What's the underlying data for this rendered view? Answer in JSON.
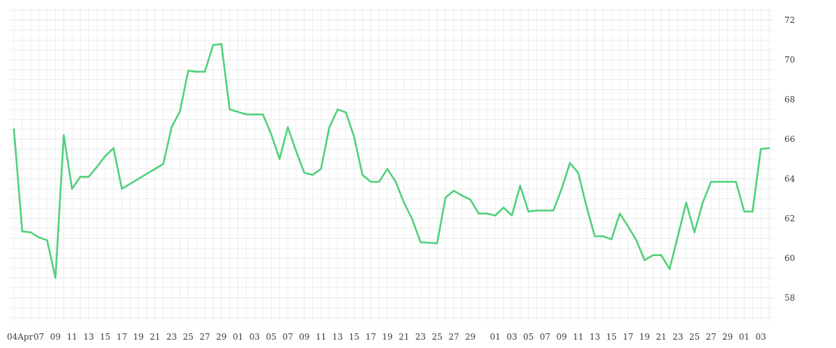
{
  "chart_data": {
    "type": "line",
    "title": "",
    "xlabel": "",
    "ylabel": "",
    "ylim": [
      56.8,
      72.6
    ],
    "xlim": [
      "2024-04-04",
      "2024-07-04"
    ],
    "y_axis_position": "right",
    "grid": true,
    "legend": "none",
    "yticks": [
      58,
      60,
      62,
      64,
      66,
      68,
      70,
      72
    ],
    "xtick_labels": [
      "04Apr",
      "07",
      "09",
      "11",
      "13",
      "15",
      "17",
      "19",
      "21",
      "23",
      "25",
      "27",
      "29",
      "01",
      "03",
      "05",
      "07",
      "09",
      "11",
      "13",
      "15",
      "17",
      "19",
      "21",
      "23",
      "25",
      "27",
      "29",
      "01",
      "03",
      "05",
      "07",
      "09",
      "11",
      "13",
      "15",
      "17",
      "19",
      "21",
      "23",
      "25",
      "27",
      "29",
      "01",
      "03"
    ],
    "xtick_dates": [
      "2024-04-04",
      "2024-04-07",
      "2024-04-09",
      "2024-04-11",
      "2024-04-13",
      "2024-04-15",
      "2024-04-17",
      "2024-04-19",
      "2024-04-21",
      "2024-04-23",
      "2024-04-25",
      "2024-04-27",
      "2024-04-29",
      "2024-05-01",
      "2024-05-03",
      "2024-05-05",
      "2024-05-07",
      "2024-05-09",
      "2024-05-11",
      "2024-05-13",
      "2024-05-15",
      "2024-05-17",
      "2024-05-19",
      "2024-05-21",
      "2024-05-23",
      "2024-05-25",
      "2024-05-27",
      "2024-05-29",
      "2024-06-01",
      "2024-06-03",
      "2024-06-05",
      "2024-06-07",
      "2024-06-09",
      "2024-06-11",
      "2024-06-13",
      "2024-06-15",
      "2024-06-17",
      "2024-06-19",
      "2024-06-21",
      "2024-06-23",
      "2024-06-25",
      "2024-06-27",
      "2024-06-29",
      "2024-07-01",
      "2024-07-03"
    ],
    "series": [
      {
        "color": "#4fd17a",
        "x": [
          "2024-04-04",
          "2024-04-05",
          "2024-04-06",
          "2024-04-07",
          "2024-04-08",
          "2024-04-09",
          "2024-04-10",
          "2024-04-11",
          "2024-04-12",
          "2024-04-13",
          "2024-04-14",
          "2024-04-15",
          "2024-04-16",
          "2024-04-17",
          "2024-04-22",
          "2024-04-23",
          "2024-04-24",
          "2024-04-25",
          "2024-04-26",
          "2024-04-27",
          "2024-04-28",
          "2024-04-29",
          "2024-04-30",
          "2024-05-02",
          "2024-05-03",
          "2024-05-04",
          "2024-05-05",
          "2024-05-06",
          "2024-05-07",
          "2024-05-08",
          "2024-05-09",
          "2024-05-10",
          "2024-05-11",
          "2024-05-12",
          "2024-05-13",
          "2024-05-14",
          "2024-05-15",
          "2024-05-16",
          "2024-05-17",
          "2024-05-18",
          "2024-05-19",
          "2024-05-20",
          "2024-05-21",
          "2024-05-22",
          "2024-05-23",
          "2024-05-25",
          "2024-05-26",
          "2024-05-27",
          "2024-05-28",
          "2024-05-29",
          "2024-05-30",
          "2024-05-31",
          "2024-06-01",
          "2024-06-02",
          "2024-06-03",
          "2024-06-04",
          "2024-06-05",
          "2024-06-06",
          "2024-06-08",
          "2024-06-09",
          "2024-06-10",
          "2024-06-11",
          "2024-06-12",
          "2024-06-13",
          "2024-06-14",
          "2024-06-15",
          "2024-06-16",
          "2024-06-17",
          "2024-06-18",
          "2024-06-19",
          "2024-06-20",
          "2024-06-21",
          "2024-06-22",
          "2024-06-23",
          "2024-06-24",
          "2024-06-25",
          "2024-06-26",
          "2024-06-27",
          "2024-06-28",
          "2024-06-30",
          "2024-07-01",
          "2024-07-02",
          "2024-07-03",
          "2024-07-04"
        ],
        "values": [
          66.5,
          61.35,
          61.3,
          61.05,
          60.9,
          59.0,
          66.2,
          63.5,
          64.1,
          64.1,
          64.6,
          65.15,
          65.55,
          63.5,
          64.75,
          66.6,
          67.4,
          69.45,
          69.4,
          69.4,
          70.75,
          70.8,
          67.5,
          67.25,
          67.25,
          67.25,
          66.25,
          65.0,
          66.6,
          65.4,
          64.3,
          64.2,
          64.5,
          66.6,
          67.5,
          67.35,
          66.1,
          64.2,
          63.85,
          63.85,
          64.5,
          63.85,
          62.8,
          61.95,
          60.8,
          60.75,
          63.05,
          63.4,
          63.15,
          62.95,
          62.25,
          62.25,
          62.15,
          62.55,
          62.15,
          63.65,
          62.35,
          62.4,
          62.4,
          63.5,
          64.8,
          64.3,
          62.6,
          61.1,
          61.1,
          60.95,
          62.25,
          61.6,
          60.9,
          59.9,
          60.15,
          60.15,
          59.45,
          61.1,
          62.8,
          61.3,
          62.8,
          63.85,
          63.85,
          63.85,
          62.35,
          62.35,
          65.5,
          65.55
        ]
      }
    ]
  }
}
